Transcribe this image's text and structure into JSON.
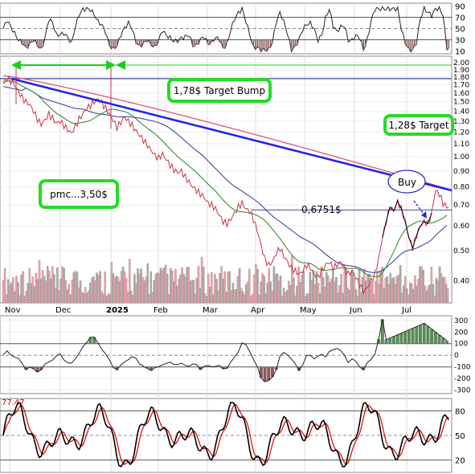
{
  "chart_data": {
    "type": "line",
    "title": "",
    "x_labels": [
      "Nov",
      "Dec",
      "2025",
      "Feb",
      "Mar",
      "Apr",
      "May",
      "Jun",
      "Jul"
    ],
    "price_axis": {
      "scale": "log",
      "ylim": [
        0.34,
        2.1
      ],
      "ticks": [
        "2.00",
        "1.90",
        "1.80",
        "1.70",
        "1.60",
        "1.50",
        "1.40",
        "1.30",
        "1.20",
        "1.10",
        "1.00",
        "0.90",
        "0.80",
        "0.70",
        "0.60",
        "0.50",
        "0.40"
      ]
    },
    "top_panel": {
      "ylim": [
        5,
        95
      ],
      "ticks": [
        "90",
        "70",
        "50",
        "30",
        "10"
      ],
      "levels": [
        70,
        50,
        30
      ]
    },
    "macd_panel": {
      "ylim": [
        -330,
        340
      ],
      "ticks": [
        "300",
        "200",
        "100",
        "0",
        "-100",
        "-200",
        "-300"
      ]
    },
    "stoch_panel": {
      "ylim": [
        5,
        95
      ],
      "ticks": [
        "80",
        "50",
        "20"
      ],
      "last_value_label": "77.47",
      "levels": [
        80,
        50,
        20
      ]
    },
    "price_series": [
      1.72,
      1.78,
      1.75,
      1.7,
      1.62,
      1.55,
      1.5,
      1.47,
      1.4,
      1.32,
      1.27,
      1.31,
      1.37,
      1.33,
      1.28,
      1.3,
      1.26,
      1.22,
      1.19,
      1.25,
      1.32,
      1.37,
      1.43,
      1.46,
      1.5,
      1.53,
      1.49,
      1.43,
      1.37,
      1.31,
      1.24,
      1.29,
      1.34,
      1.3,
      1.26,
      1.21,
      1.17,
      1.13,
      1.09,
      1.05,
      1.01,
      0.99,
      1.02,
      0.98,
      0.94,
      0.91,
      0.89,
      0.9,
      0.86,
      0.83,
      0.8,
      0.78,
      0.76,
      0.74,
      0.71,
      0.7,
      0.68,
      0.65,
      0.62,
      0.61,
      0.63,
      0.66,
      0.69,
      0.71,
      0.68,
      0.67,
      0.63,
      0.58,
      0.52,
      0.47,
      0.45,
      0.46,
      0.49,
      0.51,
      0.48,
      0.46,
      0.44,
      0.43,
      0.42,
      0.43,
      0.45,
      0.44,
      0.42,
      0.41,
      0.43,
      0.45,
      0.46,
      0.44,
      0.45,
      0.46,
      0.44,
      0.42,
      0.43,
      0.41,
      0.39,
      0.37,
      0.38,
      0.4,
      0.42,
      0.47,
      0.55,
      0.62,
      0.69,
      0.67,
      0.72,
      0.68,
      0.62,
      0.55,
      0.51,
      0.56,
      0.6,
      0.62,
      0.61,
      0.66,
      0.78,
      0.76,
      0.71,
      0.69
    ],
    "series": [
      {
        "name": "",
        "color": "#cc3344",
        "role": "price"
      },
      {
        "name": "",
        "color": "#228822",
        "role": "short-moving-average"
      },
      {
        "name": "",
        "color": "#3333aa",
        "role": "medium-moving-average"
      },
      {
        "name": "",
        "color": "#dd5577",
        "role": "long-moving-average"
      }
    ],
    "trendline": {
      "from": [
        "Nov",
        1.78
      ],
      "to": [
        "Jul",
        0.78
      ],
      "color": "#2222ee"
    },
    "horizontal_levels": [
      {
        "value": 1.78,
        "color": "#4444aa"
      },
      {
        "value": 1.28,
        "color": "#4444aa"
      },
      {
        "value": 0.6751,
        "color": "#4444aa"
      }
    ]
  },
  "annotations": {
    "target_bump": "1,78$ Target Bump",
    "target": "1,28$ Target",
    "pmc": "pmc...3,50$",
    "level": "0,6751$",
    "buy": "Buy"
  },
  "colors": {
    "annotation_border": "#22dd22",
    "arrow": "#22cc22",
    "price": "#cc3344",
    "trendline": "#2222ee",
    "volume_up": "#aaaaaa",
    "volume_down": "#f0a0a8",
    "macd_hist_pos": "#5a8a5a",
    "macd_hist_neg": "#8a5a5a",
    "stoch_k": "#000000",
    "stoch_d": "#dd0000"
  }
}
